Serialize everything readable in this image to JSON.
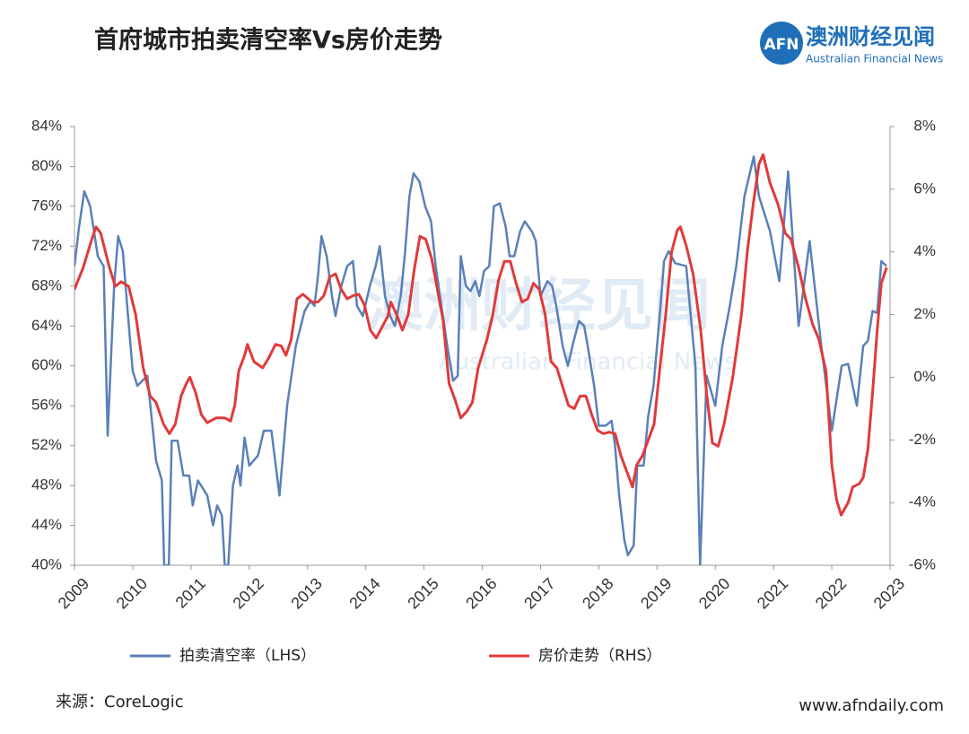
{
  "header": {
    "logo_mark": "AFN",
    "logo_name": "澳洲财经见闻",
    "logo_sub": "Australian Financial News"
  },
  "chart_data": {
    "type": "line",
    "title": "首府城市拍卖清空率Vs房价走势",
    "watermark": "澳洲财经见闻",
    "watermark_sub": "Australian Financial News",
    "xlim": [
      2009,
      2023
    ],
    "xticks": [
      2009,
      2010,
      2011,
      2012,
      2013,
      2014,
      2015,
      2016,
      2017,
      2018,
      2019,
      2020,
      2021,
      2022,
      2023
    ],
    "ylim": [
      40,
      84
    ],
    "yticks": [
      {
        "value": 40,
        "label": "40%"
      },
      {
        "value": 44,
        "label": "44%"
      },
      {
        "value": 48,
        "label": "48%"
      },
      {
        "value": 52,
        "label": "52%"
      },
      {
        "value": 56,
        "label": "56%"
      },
      {
        "value": 60,
        "label": "60%"
      },
      {
        "value": 64,
        "label": "64%"
      },
      {
        "value": 68,
        "label": "68%"
      },
      {
        "value": 72,
        "label": "72%"
      },
      {
        "value": 76,
        "label": "76%"
      },
      {
        "value": 80,
        "label": "80%"
      },
      {
        "value": 84,
        "label": "84%"
      }
    ],
    "y2lim": [
      -6,
      8
    ],
    "y2ticks": [
      {
        "value": -6,
        "label": "-6%"
      },
      {
        "value": -4,
        "label": "-4%"
      },
      {
        "value": -2,
        "label": "-2%"
      },
      {
        "value": 0,
        "label": "0%"
      },
      {
        "value": 2,
        "label": "2%"
      },
      {
        "value": 4,
        "label": "4%"
      },
      {
        "value": 6,
        "label": "6%"
      },
      {
        "value": 8,
        "label": "8%"
      }
    ],
    "grid": false,
    "legend": "bottom",
    "series": [
      {
        "name": "拍卖清空率（LHS）",
        "color": "#5b80b8",
        "axis": "y",
        "x": [
          2009.0,
          2009.08,
          2009.17,
          2009.27,
          2009.4,
          2009.5,
          2009.57,
          2009.68,
          2009.75,
          2009.83,
          2009.92,
          2010.0,
          2010.08,
          2010.25,
          2010.4,
          2010.5,
          2010.54,
          2010.62,
          2010.67,
          2010.77,
          2010.87,
          2010.97,
          2011.03,
          2011.12,
          2011.28,
          2011.38,
          2011.45,
          2011.53,
          2011.58,
          2011.64,
          2011.72,
          2011.8,
          2011.85,
          2011.92,
          2012.0,
          2012.15,
          2012.25,
          2012.38,
          2012.52,
          2012.65,
          2012.8,
          2012.95,
          2013.05,
          2013.12,
          2013.18,
          2013.24,
          2013.33,
          2013.42,
          2013.48,
          2013.58,
          2013.68,
          2013.78,
          2013.85,
          2013.95,
          2014.07,
          2014.17,
          2014.24,
          2014.33,
          2014.42,
          2014.5,
          2014.6,
          2014.67,
          2014.75,
          2014.82,
          2014.92,
          2015.02,
          2015.12,
          2015.2,
          2015.3,
          2015.4,
          2015.5,
          2015.58,
          2015.63,
          2015.72,
          2015.8,
          2015.88,
          2015.95,
          2016.03,
          2016.12,
          2016.2,
          2016.3,
          2016.4,
          2016.47,
          2016.55,
          2016.65,
          2016.73,
          2016.85,
          2016.92,
          2017.0,
          2017.12,
          2017.2,
          2017.27,
          2017.38,
          2017.47,
          2017.57,
          2017.66,
          2017.75,
          2017.81,
          2017.92,
          2018.0,
          2018.12,
          2018.22,
          2018.28,
          2018.35,
          2018.44,
          2018.5,
          2018.6,
          2018.66,
          2018.77,
          2018.85,
          2018.94,
          2019.06,
          2019.12,
          2019.2,
          2019.31,
          2019.5,
          2019.58,
          2019.66,
          2019.74,
          2019.85,
          2020.0,
          2020.12,
          2020.25,
          2020.36,
          2020.5,
          2020.66,
          2020.75,
          2020.94,
          2021.1,
          2021.25,
          2021.43,
          2021.62,
          2021.82,
          2022.0,
          2022.17,
          2022.28,
          2022.43,
          2022.54,
          2022.62,
          2022.7,
          2022.78,
          2022.85,
          2022.94
        ],
        "values": [
          70,
          74,
          77.5,
          76,
          71,
          70,
          53,
          68,
          73,
          71.5,
          65,
          59.5,
          58,
          59,
          50.5,
          48.5,
          40,
          40,
          52.5,
          52.5,
          49,
          49,
          46,
          48.5,
          47,
          44,
          46,
          45,
          40,
          40,
          48,
          50,
          48,
          52.8,
          50,
          51,
          53.5,
          53.5,
          47,
          56,
          62,
          65.5,
          66.5,
          66,
          69,
          73,
          71,
          67,
          65,
          68,
          70,
          70.5,
          66,
          65,
          68,
          70,
          72,
          67,
          65,
          64,
          67,
          71,
          77,
          79.3,
          78.5,
          76,
          74.5,
          70,
          66,
          62,
          58.5,
          59,
          71,
          68,
          67.5,
          68.5,
          67,
          69.5,
          70,
          76,
          76.3,
          74,
          71,
          71,
          73.5,
          74.5,
          73.5,
          72.5,
          67,
          68.5,
          68,
          66,
          62,
          60,
          62.5,
          64.5,
          64,
          62,
          58,
          54,
          54,
          54.5,
          52,
          47,
          42.5,
          41,
          42,
          50,
          50,
          55,
          58,
          66,
          70.5,
          71.5,
          70.3,
          70,
          65,
          60,
          40,
          59,
          56,
          62,
          66,
          70,
          77,
          81,
          77,
          73.5,
          68.5,
          79.5,
          64,
          72.5,
          62,
          53.5,
          60,
          60.2,
          56,
          62,
          62.5,
          65.5,
          65.3,
          70.5,
          70
        ]
      },
      {
        "name": "房价走势（RHS）",
        "color": "#e03a3a",
        "axis": "y2",
        "x": [
          2009.0,
          2009.15,
          2009.28,
          2009.37,
          2009.45,
          2009.6,
          2009.7,
          2009.8,
          2009.93,
          2010.05,
          2010.18,
          2010.3,
          2010.4,
          2010.53,
          2010.63,
          2010.73,
          2010.83,
          2010.92,
          2010.98,
          2011.08,
          2011.18,
          2011.28,
          2011.43,
          2011.58,
          2011.68,
          2011.75,
          2011.82,
          2011.92,
          2011.97,
          2012.08,
          2012.23,
          2012.33,
          2012.45,
          2012.55,
          2012.63,
          2012.72,
          2012.82,
          2012.92,
          2013.08,
          2013.18,
          2013.28,
          2013.38,
          2013.48,
          2013.58,
          2013.68,
          2013.78,
          2013.88,
          2013.98,
          2014.08,
          2014.18,
          2014.28,
          2014.38,
          2014.43,
          2014.53,
          2014.63,
          2014.73,
          2014.83,
          2014.93,
          2015.03,
          2015.13,
          2015.23,
          2015.33,
          2015.43,
          2015.53,
          2015.63,
          2015.73,
          2015.83,
          2015.93,
          2016.08,
          2016.18,
          2016.28,
          2016.38,
          2016.48,
          2016.58,
          2016.68,
          2016.78,
          2016.88,
          2016.98,
          2017.08,
          2017.18,
          2017.28,
          2017.38,
          2017.48,
          2017.58,
          2017.68,
          2017.78,
          2017.88,
          2017.98,
          2018.08,
          2018.18,
          2018.28,
          2018.38,
          2018.48,
          2018.58,
          2018.65,
          2018.75,
          2018.85,
          2018.95,
          2019.05,
          2019.15,
          2019.25,
          2019.35,
          2019.4,
          2019.5,
          2019.62,
          2019.75,
          2019.85,
          2019.95,
          2020.05,
          2020.15,
          2020.3,
          2020.45,
          2020.55,
          2020.65,
          2020.75,
          2020.82,
          2020.94,
          2021.08,
          2021.2,
          2021.3,
          2021.43,
          2021.55,
          2021.67,
          2021.78,
          2021.9,
          2022.0,
          2022.08,
          2022.16,
          2022.28,
          2022.36,
          2022.47,
          2022.54,
          2022.62,
          2022.7,
          2022.78,
          2022.85,
          2022.94
        ],
        "values": [
          2.8,
          3.5,
          4.3,
          4.8,
          4.6,
          3.5,
          2.9,
          3.05,
          2.9,
          2.0,
          0.3,
          -0.6,
          -0.8,
          -1.5,
          -1.8,
          -1.5,
          -0.6,
          -0.2,
          0,
          -0.5,
          -1.2,
          -1.45,
          -1.3,
          -1.3,
          -1.4,
          -0.9,
          0.2,
          0.7,
          1.05,
          0.5,
          0.3,
          0.6,
          1.05,
          1.0,
          0.7,
          1.2,
          2.5,
          2.65,
          2.4,
          2.4,
          2.6,
          3.2,
          3.3,
          2.8,
          2.5,
          2.6,
          2.65,
          2.3,
          1.5,
          1.25,
          1.6,
          1.95,
          2.4,
          2.0,
          1.5,
          2.0,
          3.4,
          4.5,
          4.4,
          3.8,
          2.8,
          1.8,
          -0.2,
          -0.7,
          -1.3,
          -1.1,
          -0.8,
          0.3,
          1.2,
          2.0,
          3.1,
          3.7,
          3.7,
          3.0,
          2.4,
          2.5,
          3.0,
          2.8,
          2.0,
          0.5,
          0.3,
          -0.3,
          -0.9,
          -1.0,
          -0.6,
          -0.6,
          -1.2,
          -1.7,
          -1.8,
          -1.75,
          -1.8,
          -2.5,
          -3.0,
          -3.5,
          -2.8,
          -2.5,
          -2.0,
          -1.5,
          0.3,
          2.0,
          4.0,
          4.7,
          4.8,
          4.2,
          3.3,
          1.5,
          -0.5,
          -2.1,
          -2.2,
          -1.5,
          0,
          2.0,
          4.0,
          5.5,
          6.8,
          7.1,
          6.2,
          5.5,
          4.6,
          4.4,
          3.5,
          2.5,
          1.7,
          1.2,
          0.2,
          -2.8,
          -3.9,
          -4.4,
          -4.0,
          -3.5,
          -3.4,
          -3.2,
          -2.3,
          -0.5,
          1.5,
          3.0,
          3.5
        ]
      }
    ]
  },
  "footer": {
    "source": "来源：CoreLogic",
    "url": "www.afndaily.com"
  }
}
